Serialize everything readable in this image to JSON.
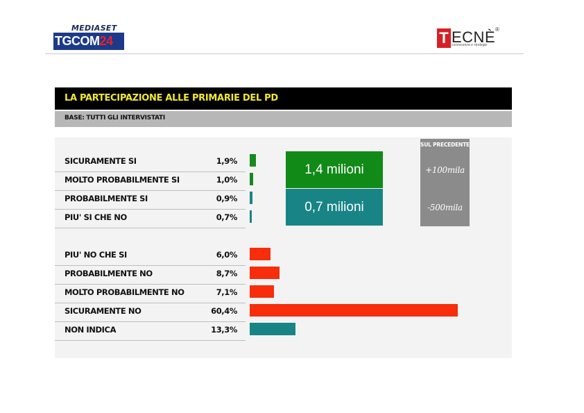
{
  "header": {
    "mediaset_label": "MEDIASET",
    "tgcom_main": "TGCOM",
    "tgcom_num": "24",
    "tecne_initial": "T",
    "tecne_rest": "ECNÈ",
    "tecne_reg": "®",
    "tecne_tagline": "conoscenza e strategie"
  },
  "title": "LA PARTECIPAZIONE ALLE PRIMARIE DEL PD",
  "subtitle": "BASE: TUTTI GLI INTERVISTATI",
  "summary": {
    "top_value": "1,4 milioni",
    "bottom_value": "0,7 milioni",
    "precedente_label": "SUL PRECEDENTE",
    "precedente_top": "+100mila",
    "precedente_bottom": "-500mila",
    "colors": {
      "green": "#118a18",
      "teal": "#198485",
      "grey": "#8b8b8b"
    }
  },
  "chart_data": {
    "type": "bar",
    "orientation": "horizontal",
    "unit": "%",
    "categories": [
      "SICURAMENTE SI",
      "MOLTO PROBABILMENTE SI",
      "PROBABILMENTE SI",
      "PIU' SI CHE NO",
      "PIU' NO CHE SI",
      "PROBABILMENTE NO",
      "MOLTO PROBABILMENTE NO",
      "SICURAMENTE NO",
      "NON INDICA"
    ],
    "labels": [
      "1,9%",
      "1,0%",
      "0,9%",
      "0,7%",
      "6,0%",
      "8,7%",
      "7,1%",
      "60,4%",
      "13,3%"
    ],
    "values": [
      1.9,
      1.0,
      0.9,
      0.7,
      6.0,
      8.7,
      7.1,
      60.4,
      13.3
    ],
    "colors": [
      "#168a1e",
      "#168a1e",
      "#198485",
      "#198485",
      "#f72d0c",
      "#f72d0c",
      "#f72d0c",
      "#f72d0c",
      "#198485"
    ],
    "xlim": [
      0,
      60.4
    ]
  }
}
